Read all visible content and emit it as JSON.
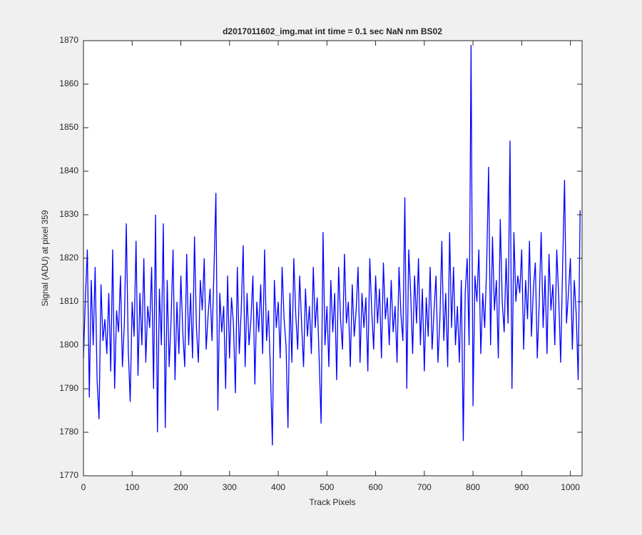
{
  "chart_data": {
    "type": "line",
    "title": "d2017011602_img.mat int time = 0.1 sec  NaN nm BS02",
    "x_label": "Track Pixels",
    "y_label": "Signal (ADU) at pixel 359",
    "color": "#0000ff",
    "xlim": [
      0,
      1024
    ],
    "xticks": [
      0,
      100,
      200,
      300,
      400,
      500,
      600,
      700,
      800,
      900,
      1000
    ],
    "ylim": [
      1770,
      1870
    ],
    "yticks": [
      1770,
      1780,
      1790,
      1800,
      1810,
      1820,
      1830,
      1840,
      1850,
      1860,
      1870
    ],
    "grid": false,
    "x": [
      0,
      4,
      8,
      12,
      16,
      20,
      24,
      28,
      32,
      36,
      40,
      44,
      48,
      52,
      56,
      60,
      64,
      68,
      72,
      76,
      80,
      84,
      88,
      92,
      96,
      100,
      104,
      108,
      112,
      116,
      120,
      124,
      128,
      132,
      136,
      140,
      144,
      148,
      152,
      156,
      160,
      164,
      168,
      172,
      176,
      180,
      184,
      188,
      192,
      196,
      200,
      204,
      208,
      212,
      216,
      220,
      224,
      228,
      232,
      236,
      240,
      244,
      248,
      252,
      256,
      260,
      264,
      268,
      272,
      276,
      280,
      284,
      288,
      292,
      296,
      300,
      304,
      308,
      312,
      316,
      320,
      324,
      328,
      332,
      336,
      340,
      344,
      348,
      352,
      356,
      360,
      364,
      368,
      372,
      376,
      380,
      384,
      388,
      392,
      396,
      400,
      404,
      408,
      412,
      416,
      420,
      424,
      428,
      432,
      436,
      440,
      444,
      448,
      452,
      456,
      460,
      464,
      468,
      472,
      476,
      480,
      484,
      488,
      492,
      496,
      500,
      504,
      508,
      512,
      516,
      520,
      524,
      528,
      532,
      536,
      540,
      544,
      548,
      552,
      556,
      560,
      564,
      568,
      572,
      576,
      580,
      584,
      588,
      592,
      596,
      600,
      604,
      608,
      612,
      616,
      620,
      624,
      628,
      632,
      636,
      640,
      644,
      648,
      652,
      656,
      660,
      664,
      668,
      672,
      676,
      680,
      684,
      688,
      692,
      696,
      700,
      704,
      708,
      712,
      716,
      720,
      724,
      728,
      732,
      736,
      740,
      744,
      748,
      752,
      756,
      760,
      764,
      768,
      772,
      776,
      780,
      784,
      788,
      792,
      796,
      800,
      804,
      808,
      812,
      816,
      820,
      824,
      828,
      832,
      836,
      840,
      844,
      848,
      852,
      856,
      860,
      864,
      868,
      872,
      876,
      880,
      884,
      888,
      892,
      896,
      900,
      904,
      908,
      912,
      916,
      920,
      924,
      928,
      932,
      936,
      940,
      944,
      948,
      952,
      956,
      960,
      964,
      968,
      972,
      976,
      980,
      984,
      988,
      992,
      996,
      1000,
      1004,
      1008,
      1012,
      1016,
      1020
    ],
    "values": [
      1797,
      1811,
      1822,
      1788,
      1815,
      1800,
      1818,
      1792,
      1783,
      1814,
      1801,
      1806,
      1798,
      1812,
      1794,
      1822,
      1790,
      1808,
      1803,
      1816,
      1795,
      1805,
      1828,
      1799,
      1787,
      1810,
      1802,
      1824,
      1793,
      1812,
      1800,
      1820,
      1796,
      1809,
      1804,
      1818,
      1790,
      1830,
      1780,
      1813,
      1800,
      1828,
      1781,
      1815,
      1795,
      1806,
      1822,
      1792,
      1810,
      1798,
      1816,
      1803,
      1795,
      1821,
      1800,
      1812,
      1797,
      1825,
      1804,
      1796,
      1815,
      1808,
      1820,
      1799,
      1807,
      1813,
      1801,
      1817,
      1835,
      1785,
      1812,
      1803,
      1809,
      1790,
      1816,
      1797,
      1811,
      1805,
      1789,
      1818,
      1798,
      1808,
      1823,
      1795,
      1812,
      1800,
      1806,
      1816,
      1791,
      1810,
      1803,
      1814,
      1798,
      1822,
      1801,
      1808,
      1794,
      1777,
      1815,
      1804,
      1810,
      1797,
      1818,
      1806,
      1800,
      1781,
      1812,
      1796,
      1820,
      1807,
      1799,
      1816,
      1805,
      1795,
      1813,
      1802,
      1809,
      1798,
      1818,
      1804,
      1811,
      1797,
      1782,
      1826,
      1800,
      1809,
      1795,
      1815,
      1803,
      1812,
      1792,
      1818,
      1806,
      1799,
      1821,
      1805,
      1810,
      1795,
      1814,
      1802,
      1808,
      1818,
      1796,
      1812,
      1804,
      1811,
      1794,
      1820,
      1808,
      1799,
      1816,
      1805,
      1813,
      1797,
      1819,
      1806,
      1811,
      1800,
      1815,
      1803,
      1809,
      1796,
      1818,
      1807,
      1801,
      1834,
      1790,
      1822,
      1812,
      1798,
      1816,
      1805,
      1820,
      1800,
      1813,
      1794,
      1811,
      1802,
      1818,
      1799,
      1808,
      1816,
      1796,
      1806,
      1824,
      1801,
      1812,
      1795,
      1826,
      1804,
      1818,
      1800,
      1809,
      1796,
      1815,
      1778,
      1812,
      1820,
      1800,
      1869,
      1786,
      1816,
      1810,
      1822,
      1798,
      1812,
      1804,
      1818,
      1841,
      1800,
      1825,
      1808,
      1815,
      1797,
      1829,
      1810,
      1803,
      1820,
      1805,
      1847,
      1790,
      1826,
      1810,
      1816,
      1812,
      1822,
      1799,
      1815,
      1806,
      1824,
      1802,
      1813,
      1819,
      1797,
      1810,
      1826,
      1804,
      1816,
      1798,
      1821,
      1808,
      1814,
      1800,
      1822,
      1811,
      1796,
      1818,
      1838,
      1805,
      1812,
      1820,
      1799,
      1815,
      1807,
      1792,
      1831
    ]
  }
}
